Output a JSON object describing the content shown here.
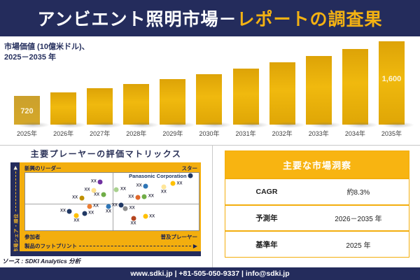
{
  "banner": {
    "title_white": "アンビエント照明市場－",
    "title_gold": "レポートの調査果"
  },
  "chart_data": [
    {
      "type": "bar",
      "title": "市場価値 (10億米ドル)、2025－2035 年",
      "title_line1": "市場価値 (10億米ドル)、",
      "title_line2": "2025－2035 年",
      "categories": [
        "2025年",
        "2026年",
        "2027年",
        "2028年",
        "2029年",
        "2030年",
        "2031年",
        "2032年",
        "2033年",
        "2034年",
        "2035年"
      ],
      "values": [
        720,
        780,
        845,
        915,
        990,
        1072,
        1161,
        1257,
        1362,
        1475,
        1600
      ],
      "ylim": [
        0,
        1600
      ],
      "value_labels": {
        "first": "720",
        "last": "1,600"
      },
      "bar_color": "#E8AC0B"
    },
    {
      "type": "scatter",
      "title": "主要プレーヤーの評価マトリックス",
      "xlabel": "製品のフットプリント",
      "ylabel": "市場シェア・順位",
      "quadrants": {
        "top_left": "新興のリーダー",
        "top_right": "スター",
        "bottom_left": "参加者",
        "bottom_right": "普及プレーヤー"
      },
      "points_note": "x,y are percent of plot area, y measured downward from top",
      "points": [
        {
          "label": "XX",
          "x": 43.3,
          "y": 15.5,
          "color": "#7030A0",
          "side": "left"
        },
        {
          "label": "XX",
          "x": 39.5,
          "y": 30.4,
          "color": "#FFE08A",
          "side": "left"
        },
        {
          "label": "XX",
          "x": 32.5,
          "y": 43.5,
          "color": "#BF9000",
          "side": "left"
        },
        {
          "label": "XX",
          "x": 45.0,
          "y": 38.1,
          "color": "#70AD47",
          "side": "left"
        },
        {
          "label": "XX",
          "x": 52.6,
          "y": 29.2,
          "color": "#A9D18E",
          "side": "right"
        },
        {
          "label": "XX",
          "x": 69.4,
          "y": 22.6,
          "color": "#2E75B6",
          "side": "left"
        },
        {
          "label": "XX",
          "x": 79.8,
          "y": 23.8,
          "color": "#FFE699",
          "side": "below"
        },
        {
          "label": "XX",
          "x": 85.1,
          "y": 18.5,
          "color": "#FFC000",
          "side": "right"
        },
        {
          "label": "Panasonic Corporation",
          "x": 95.2,
          "y": 5.4,
          "color": "#1F3864",
          "side": "left"
        },
        {
          "label": "XX",
          "x": 64.9,
          "y": 42.3,
          "color": "#E0682B",
          "side": "left"
        },
        {
          "label": "XX",
          "x": 68.7,
          "y": 41.1,
          "color": "#70AD47",
          "side": "right"
        },
        {
          "label": "XX",
          "x": 36.9,
          "y": 58.3,
          "color": "#ED7D31",
          "side": "right"
        },
        {
          "label": "XX",
          "x": 48.0,
          "y": 58.3,
          "color": "#2E75B6",
          "side": "below"
        },
        {
          "label": "XX",
          "x": 25.6,
          "y": 66.7,
          "color": "#203864",
          "side": "left"
        },
        {
          "label": "XX",
          "x": 29.6,
          "y": 73.8,
          "color": "#FFC000",
          "side": "below"
        },
        {
          "label": "XX",
          "x": 34.1,
          "y": 70.2,
          "color": "#203864",
          "side": "right"
        },
        {
          "label": "XX",
          "x": 55.4,
          "y": 56.5,
          "color": "#203864",
          "side": "left"
        },
        {
          "label": "XX",
          "x": 57.7,
          "y": 61.9,
          "color": "#8C8C8C",
          "side": "right"
        },
        {
          "label": "XX",
          "x": 62.3,
          "y": 79.2,
          "color": "#B5451F",
          "side": "below"
        },
        {
          "label": "XX",
          "x": 69.2,
          "y": 76.2,
          "color": "#FFC000",
          "side": "right"
        }
      ]
    }
  ],
  "insights": {
    "title": "主要な市場洞察",
    "rows": [
      {
        "label": "CAGR",
        "value": "約8.3%"
      },
      {
        "label": "予測年",
        "value": "2026－2035 年"
      },
      {
        "label": "基準年",
        "value": "2025 年"
      }
    ]
  },
  "source": "ソース : SDKI Analytics 分析",
  "footer": {
    "text": "www.sdki.jp | +81-505-050-9337 | info@sdki.jp"
  },
  "colors": {
    "navy": "#242C5C",
    "gold_panel": "#F3AE0E",
    "gold_title": "#F4B212",
    "bar_gold": "#E8AC0B",
    "value_label": "#FBF3D9"
  }
}
